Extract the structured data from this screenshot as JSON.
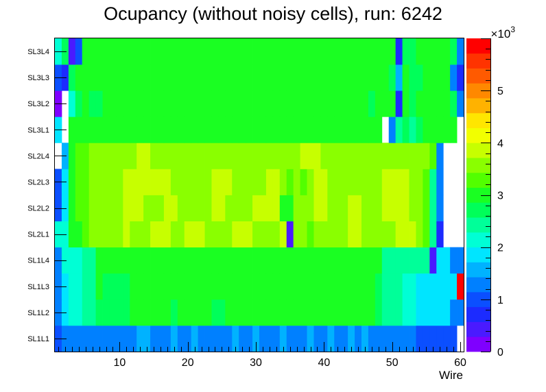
{
  "chart_data": {
    "type": "heatmap",
    "title": "Ocupancy (without noisy cells), run: 6242",
    "xlabel": "Wire",
    "ylabel": "",
    "x_range": [
      0.5,
      60.5
    ],
    "x_ticks": [
      10,
      20,
      30,
      40,
      50,
      60
    ],
    "y_categories": [
      "SL1L1",
      "SL1L2",
      "SL1L3",
      "SL1L4",
      "SL2L1",
      "SL2L2",
      "SL2L3",
      "SL2L4",
      "SL3L1",
      "SL3L2",
      "SL3L3",
      "SL3L4"
    ],
    "z_range": [
      0,
      6000
    ],
    "z_multiplier_label": "×10",
    "z_multiplier_exponent": "3",
    "z_ticks": [
      {
        "value": 0,
        "label": "0"
      },
      {
        "value": 1000,
        "label": "1"
      },
      {
        "value": 2000,
        "label": "2"
      },
      {
        "value": 3000,
        "label": "3"
      },
      {
        "value": 4000,
        "label": "4"
      },
      {
        "value": 5000,
        "label": "5"
      }
    ],
    "palette": [
      "#7f00ff",
      "#4a1aff",
      "#1c2bff",
      "#0b4fff",
      "#0080ff",
      "#00b2ff",
      "#00e5ff",
      "#00ffd5",
      "#00ff99",
      "#00ff59",
      "#1aff22",
      "#52ff00",
      "#8aff00",
      "#c7ff00",
      "#f2ff00",
      "#ffe600",
      "#ffb200",
      "#ff8800",
      "#ff5a00",
      "#ff3300",
      "#ff0000"
    ],
    "rows": {
      "SL1L1": [
        1000,
        1400,
        1400,
        1400,
        1400,
        1400,
        1400,
        1400,
        1400,
        1400,
        1400,
        1400,
        1650,
        1650,
        1400,
        1400,
        1400,
        1550,
        1400,
        1400,
        1650,
        1400,
        1400,
        1400,
        1400,
        1400,
        1550,
        1400,
        1400,
        1650,
        1400,
        1400,
        1400,
        1550,
        1400,
        1400,
        1400,
        1650,
        1400,
        1400,
        1550,
        1400,
        1400,
        1650,
        1400,
        1550,
        1400,
        1400,
        1200,
        1400,
        1400,
        1200,
        1200,
        1000,
        1000,
        1000,
        1000,
        1000,
        1000,
        null
      ],
      "SL1L2": [
        1200,
        1900,
        2100,
        2100,
        2300,
        2300,
        2700,
        2700,
        2700,
        2700,
        2700,
        2900,
        2900,
        3000,
        3000,
        2900,
        2900,
        2700,
        2900,
        2900,
        3000,
        3000,
        2900,
        2700,
        2700,
        2900,
        2900,
        3000,
        3000,
        3000,
        3000,
        3000,
        3000,
        2900,
        3000,
        3000,
        3000,
        3000,
        3000,
        3000,
        3000,
        3000,
        3000,
        3000,
        2900,
        3000,
        3000,
        2700,
        2300,
        2300,
        2300,
        2100,
        2100,
        1900,
        1900,
        1900,
        1800,
        1800,
        1400,
        1200
      ],
      "SL1L3": [
        1200,
        1900,
        2100,
        2100,
        2300,
        2300,
        2900,
        2700,
        2700,
        2700,
        2700,
        2900,
        2900,
        2900,
        3000,
        3000,
        2900,
        2900,
        2900,
        3000,
        3000,
        3000,
        2900,
        2900,
        2900,
        3000,
        3000,
        3000,
        3000,
        3000,
        3000,
        3000,
        3000,
        3000,
        3000,
        3000,
        3000,
        3000,
        3000,
        3000,
        3000,
        3000,
        3000,
        3000,
        3000,
        3000,
        3000,
        2700,
        2300,
        2300,
        2300,
        2100,
        2100,
        1900,
        1900,
        1800,
        1800,
        1800,
        1800,
        5900
      ],
      "SL1L4": [
        1200,
        2100,
        2100,
        2100,
        2300,
        2300,
        2900,
        2900,
        2900,
        2900,
        2900,
        2900,
        3000,
        3000,
        3000,
        3000,
        3000,
        2900,
        2900,
        2900,
        3000,
        3000,
        3000,
        2900,
        3000,
        3000,
        3000,
        3000,
        3000,
        3000,
        3000,
        3000,
        3000,
        3000,
        3000,
        3000,
        3000,
        3000,
        3000,
        3000,
        3000,
        3000,
        3000,
        3000,
        3000,
        3000,
        3000,
        2900,
        2300,
        2300,
        2300,
        2300,
        2300,
        2300,
        2300,
        500,
        1900,
        1800,
        1400,
        1200
      ],
      "SL2L1": [
        2100,
        2100,
        3100,
        3100,
        3300,
        3600,
        3600,
        3600,
        3600,
        3600,
        3800,
        3600,
        3600,
        3600,
        3800,
        3800,
        3800,
        3600,
        3600,
        3800,
        3800,
        3800,
        3600,
        3600,
        3600,
        3600,
        3800,
        3800,
        3800,
        3600,
        3600,
        3600,
        3600,
        3800,
        500,
        3600,
        3600,
        3300,
        3600,
        3600,
        3600,
        3600,
        3600,
        3800,
        3800,
        3600,
        3600,
        3600,
        3600,
        3600,
        3800,
        3800,
        3800,
        3600,
        3300,
        2300,
        600,
        null,
        null,
        null
      ],
      "SL2L2": [
        1000,
        1900,
        3100,
        3300,
        3300,
        3600,
        3600,
        3600,
        3600,
        3600,
        3800,
        3800,
        3800,
        3600,
        3600,
        3600,
        3800,
        3800,
        3600,
        3600,
        3600,
        3600,
        3600,
        3800,
        3800,
        3600,
        3600,
        3600,
        3600,
        3800,
        3800,
        3800,
        3800,
        3100,
        3100,
        3600,
        3600,
        3600,
        3800,
        3800,
        3600,
        3600,
        3600,
        3800,
        3800,
        3600,
        3600,
        3600,
        3800,
        3800,
        3800,
        3800,
        3600,
        3600,
        3300,
        2300,
        1200,
        null,
        null,
        null
      ],
      "SL2L3": [
        1000,
        1900,
        3100,
        3300,
        3300,
        3600,
        3600,
        3600,
        3600,
        3600,
        3800,
        3800,
        3800,
        3800,
        3800,
        3800,
        3800,
        3600,
        3600,
        3600,
        3600,
        3600,
        3600,
        3800,
        3800,
        3800,
        3600,
        3600,
        3600,
        3600,
        3600,
        3800,
        3800,
        3600,
        3300,
        3600,
        3300,
        3600,
        3800,
        3800,
        3600,
        3600,
        3600,
        3600,
        3600,
        3600,
        3600,
        3600,
        3800,
        3800,
        3800,
        3800,
        3600,
        3600,
        3300,
        2300,
        1200,
        null,
        null,
        null
      ],
      "SL2L4": [
        null,
        1600,
        3100,
        3300,
        3300,
        3600,
        3600,
        3600,
        3600,
        3600,
        3600,
        3600,
        3800,
        3800,
        3600,
        3600,
        3600,
        3600,
        3600,
        3600,
        3600,
        3600,
        3600,
        3600,
        3600,
        3600,
        3600,
        3600,
        3600,
        3600,
        3600,
        3600,
        3600,
        3600,
        3600,
        3600,
        3800,
        3800,
        3800,
        3600,
        3600,
        3600,
        3600,
        3600,
        3600,
        3600,
        3600,
        3600,
        3600,
        3600,
        3600,
        3600,
        3600,
        3600,
        3600,
        3300,
        1200,
        null,
        null,
        null
      ],
      "SL3L1": [
        1900,
        null,
        2900,
        2900,
        2900,
        3000,
        3000,
        3000,
        3000,
        3000,
        3000,
        3000,
        3000,
        3000,
        3000,
        2900,
        2900,
        2900,
        3000,
        3000,
        3000,
        3000,
        3000,
        3000,
        3000,
        3000,
        3000,
        3000,
        3000,
        2900,
        3000,
        3000,
        3000,
        3000,
        3000,
        3000,
        3000,
        3000,
        3000,
        3000,
        3000,
        3000,
        3000,
        3000,
        3000,
        3000,
        3000,
        3000,
        null,
        1400,
        2300,
        2700,
        2300,
        2700,
        2900,
        2900,
        3000,
        2900,
        2900,
        null
      ],
      "SL3L2": [
        200,
        null,
        2100,
        2700,
        2900,
        2700,
        2700,
        3000,
        3000,
        3000,
        3000,
        3000,
        3000,
        2900,
        2900,
        3000,
        3000,
        3000,
        3000,
        2900,
        2900,
        3000,
        3000,
        3000,
        3000,
        3000,
        3000,
        3000,
        3000,
        3000,
        3000,
        3000,
        3000,
        3000,
        3000,
        3000,
        3000,
        3000,
        3000,
        3000,
        3000,
        3000,
        3000,
        3000,
        3000,
        3000,
        2700,
        2900,
        2900,
        2900,
        800,
        2900,
        2700,
        2900,
        2900,
        2900,
        3000,
        2900,
        2700,
        1200
      ],
      "SL3L3": [
        1000,
        800,
        2700,
        2900,
        2900,
        3000,
        3000,
        3000,
        3000,
        3000,
        3000,
        3000,
        3000,
        3000,
        3000,
        3000,
        3000,
        3000,
        3000,
        3000,
        3000,
        3000,
        3000,
        3000,
        3000,
        3000,
        3000,
        3000,
        3000,
        3000,
        3000,
        3000,
        3000,
        3000,
        3000,
        3000,
        3000,
        3000,
        3000,
        3000,
        3000,
        2900,
        3000,
        3000,
        2900,
        2900,
        3000,
        3000,
        2900,
        2700,
        1600,
        2900,
        2700,
        2700,
        2900,
        3000,
        3000,
        2900,
        1400,
        800
      ],
      "SL3L4": [
        2100,
        2700,
        400,
        1000,
        2900,
        3000,
        3000,
        3000,
        3000,
        3000,
        3000,
        3000,
        3000,
        3000,
        3000,
        3000,
        3000,
        3000,
        3000,
        3000,
        3000,
        3000,
        3000,
        3000,
        3000,
        3000,
        3000,
        3000,
        3000,
        3000,
        3000,
        3000,
        3000,
        3000,
        3000,
        3000,
        3000,
        3000,
        3000,
        3000,
        3000,
        3000,
        3000,
        3000,
        3000,
        3000,
        3000,
        3000,
        3000,
        3000,
        600,
        2700,
        2700,
        2900,
        2900,
        2900,
        3000,
        3000,
        2700,
        1400
      ]
    }
  }
}
